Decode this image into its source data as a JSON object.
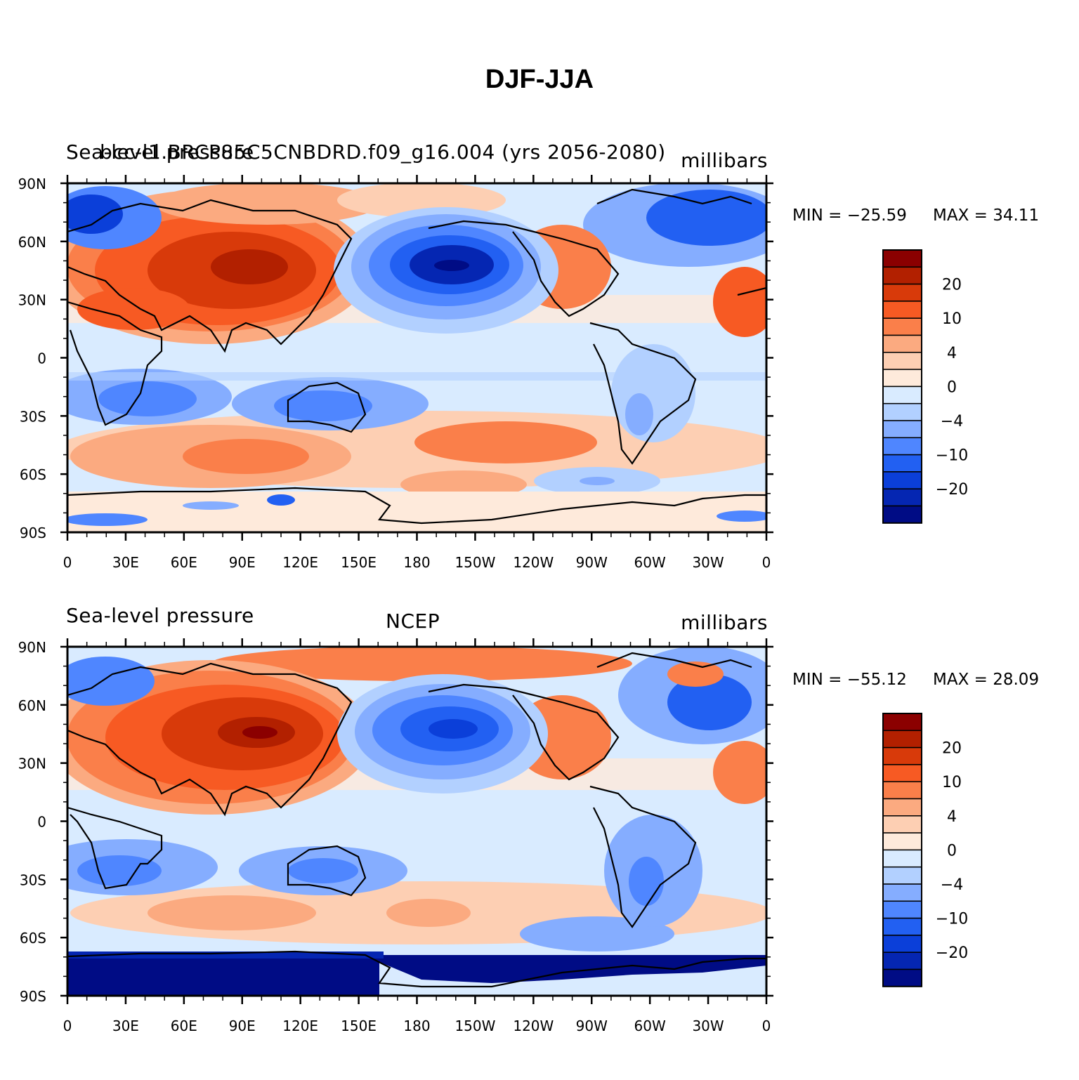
{
  "title": "DJF-JJA",
  "panels": [
    {
      "left_label": "Sea-level pressure",
      "center_label": "bcc-l1.BRCP85C5CNBDRD.f09_g16.004 (yrs 2056-2080)",
      "right_label": "millibars",
      "min_label": "MIN = −25.59",
      "max_label": "MAX =   34.11",
      "min": -25.59,
      "max": 34.11
    },
    {
      "left_label": "Sea-level pressure",
      "center_label": "NCEP",
      "right_label": "millibars",
      "min_label": "MIN = −55.12",
      "max_label": "MAX =   28.09",
      "min": -55.12,
      "max": 28.09
    }
  ],
  "axes": {
    "lat_ticks": [
      "90N",
      "60N",
      "30N",
      "0",
      "30S",
      "60S",
      "90S"
    ],
    "lon_ticks": [
      "0",
      "30E",
      "60E",
      "90E",
      "120E",
      "150E",
      "180",
      "150W",
      "120W",
      "90W",
      "60W",
      "30W",
      "0"
    ]
  },
  "colorbar": {
    "labels": [
      "20",
      "10",
      "4",
      "0",
      "−4",
      "−10",
      "−20"
    ],
    "colors": [
      "#8b0000",
      "#b22000",
      "#d83a0a",
      "#f75a23",
      "#fa7f4a",
      "#fbaa80",
      "#fdcfb3",
      "#feeadb",
      "#d9ebff",
      "#b2d0ff",
      "#85adff",
      "#4f86ff",
      "#2260f2",
      "#0b3fd9",
      "#0526b2",
      "#000c85"
    ]
  }
}
